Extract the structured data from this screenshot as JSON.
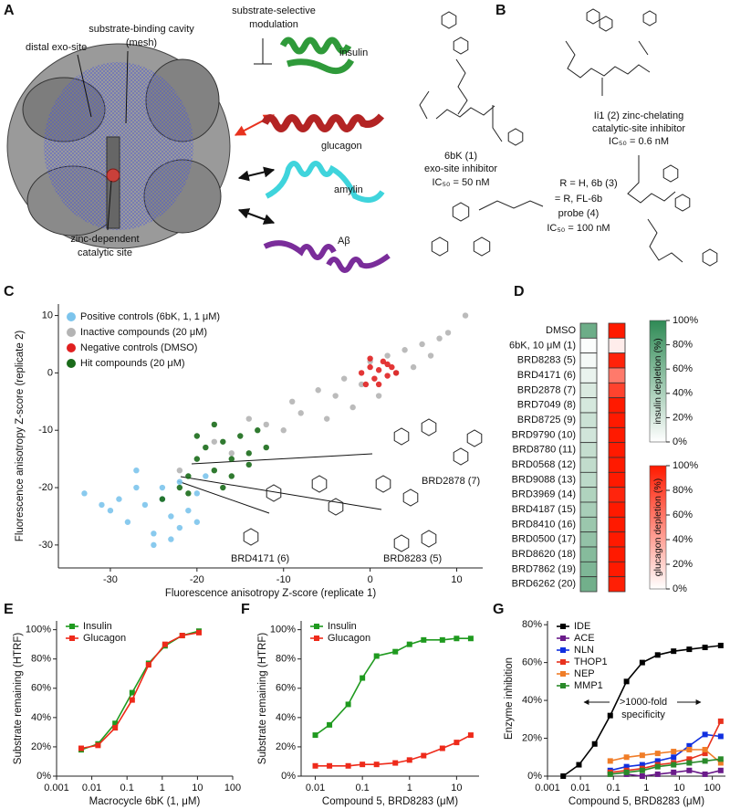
{
  "panel_a": {
    "label": "A",
    "exo_site": "distal exo-site",
    "cavity": [
      "substrate-binding cavity",
      "(mesh)"
    ],
    "catalytic_site": [
      "zinc-dependent",
      "catalytic site"
    ],
    "modulation": [
      "substrate-selective",
      "modulation"
    ],
    "substrates": [
      "insulin",
      "glucagon",
      "amylin",
      "Aβ"
    ]
  },
  "panel_b": {
    "label": "B",
    "compounds": [
      {
        "lines": [
          "6bK (1)",
          "exo-site inhibitor",
          "IC₅₀ = 50 nM"
        ]
      },
      {
        "lines": [
          "Ii1 (2) zinc-chelating",
          "catalytic-site inhibitor",
          "IC₅₀ = 0.6 nM"
        ]
      },
      {
        "lines": [
          "R = H, 6b (3)",
          "= R, FL-6b",
          "probe (4)",
          "IC₅₀ = 100 nM"
        ]
      }
    ]
  },
  "chart_data": [
    {
      "type": "scatter",
      "label": "C",
      "x_label": "Fluorescence anisotropy Z-score (replicate 1)",
      "y_label": "Fluorescence anisotropy Z-score (replicate 2)",
      "xlim": [
        -36,
        13
      ],
      "ylim": [
        -34,
        12
      ],
      "xticks": [
        -30,
        -20,
        -10,
        0,
        10
      ],
      "yticks": [
        -30,
        -20,
        -10,
        0,
        10
      ],
      "legend": "upper left",
      "series": [
        {
          "name": "Positive controls (6bK, 1, 1 μM)",
          "color": "#7cc4ec",
          "x": [
            -33,
            -30,
            -28,
            -27,
            -26,
            -25,
            -24,
            -23,
            -22,
            -21,
            -20,
            -19,
            -29,
            -25,
            -22,
            -27,
            -24,
            -20,
            -31,
            -23
          ],
          "values": [
            -21,
            -24,
            -26,
            -20,
            -23,
            -28,
            -22,
            -25,
            -19,
            -24,
            -21,
            -18,
            -22,
            -30,
            -27,
            -17,
            -20,
            -26,
            -23,
            -29
          ]
        },
        {
          "name": "Inactive compounds (20 μM)",
          "color": "#b4b4b4",
          "x": [
            -22,
            -18,
            -16,
            -14,
            -12,
            -10,
            -9,
            -8,
            -6,
            -5,
            -4,
            -3,
            -2,
            -1,
            0,
            1,
            2,
            3,
            4,
            5,
            6,
            7,
            8,
            9,
            11
          ],
          "values": [
            -17,
            -12,
            -14,
            -8,
            -9,
            -10,
            -5,
            -7,
            -3,
            -8,
            -4,
            -1,
            -6,
            -2,
            2,
            -4,
            3,
            0,
            4,
            1,
            5,
            3,
            6,
            7,
            10
          ]
        },
        {
          "name": "Negative controls (DMSO)",
          "color": "#e02020",
          "x": [
            -1,
            0,
            0.5,
            1,
            1.5,
            2,
            2.5,
            3,
            -0.5,
            1,
            2,
            0
          ],
          "values": [
            0,
            1,
            -1,
            0.5,
            2,
            -0.5,
            1,
            0,
            -2,
            -2,
            1.5,
            2.5
          ]
        },
        {
          "name": "Hit compounds (20 μM)",
          "color": "#1a6b1a",
          "x": [
            -24,
            -22,
            -21,
            -20,
            -19,
            -18,
            -17,
            -16,
            -15,
            -14,
            -13,
            -12,
            -18,
            -16,
            -14,
            -20,
            -21,
            -17
          ],
          "values": [
            -22,
            -20,
            -18,
            -15,
            -13,
            -17,
            -12,
            -15,
            -11,
            -14,
            -10,
            -13,
            -9,
            -18,
            -16,
            -11,
            -21,
            -20
          ]
        }
      ],
      "annotations": [
        "BRD2878 (7)",
        "BRD4171 (6)",
        "BRD8283 (5)"
      ]
    },
    {
      "type": "heatmap",
      "label": "D",
      "categories": [
        "DMSO",
        "6bK, 10 μM (1)",
        "BRD8283 (5)",
        "BRD4171 (6)",
        "BRD2878 (7)",
        "BRD7049 (8)",
        "BRD8725 (9)",
        "BRD9790 (10)",
        "BRD8780 (11)",
        "BRD0568 (12)",
        "BRD9088 (13)",
        "BRD3969 (14)",
        "BRD4187 (15)",
        "BRD8410 (16)",
        "BRD0500 (17)",
        "BRD8620 (18)",
        "BRD7862 (19)",
        "BRD6262 (20)"
      ],
      "series": [
        {
          "name": "insulin depletion (%)",
          "color": "#2f8a55",
          "values": [
            70,
            2,
            5,
            10,
            18,
            20,
            25,
            22,
            28,
            30,
            32,
            38,
            42,
            48,
            52,
            58,
            62,
            68
          ]
        },
        {
          "name": "glucagon depletion (%)",
          "color": "#ff1a00",
          "values": [
            100,
            8,
            96,
            58,
            82,
            100,
            100,
            100,
            100,
            100,
            100,
            95,
            100,
            100,
            100,
            100,
            100,
            98
          ]
        }
      ],
      "clim": [
        0,
        100
      ],
      "cticks": [
        {
          "value": 0,
          "label": "0%"
        },
        {
          "value": 20,
          "label": "20%"
        },
        {
          "value": 40,
          "label": "40%"
        },
        {
          "value": 60,
          "label": "60%"
        },
        {
          "value": 80,
          "label": "80%"
        },
        {
          "value": 100,
          "label": "100%"
        }
      ]
    },
    {
      "type": "line",
      "label": "E",
      "x_label": "Macrocycle 6bK (1, μM)",
      "y_label": "Substrate remaining (HTRF)",
      "xscale": "log",
      "xlim": [
        0.001,
        100
      ],
      "xticks": [
        0.001,
        0.01,
        0.1,
        1,
        10,
        100
      ],
      "ylim": [
        0,
        106
      ],
      "yticks": [
        {
          "value": 0,
          "label": "0%"
        },
        {
          "value": 20,
          "label": "20%"
        },
        {
          "value": 40,
          "label": "40%"
        },
        {
          "value": 60,
          "label": "60%"
        },
        {
          "value": 80,
          "label": "80%"
        },
        {
          "value": 100,
          "label": "100%"
        }
      ],
      "legend": "upper left",
      "x": [
        0.005,
        0.015,
        0.046,
        0.14,
        0.41,
        1.2,
        3.7,
        11
      ],
      "series": [
        {
          "name": "Insulin",
          "color": "#1f9a1f",
          "values": [
            18,
            22,
            36,
            57,
            77,
            89,
            96,
            99
          ]
        },
        {
          "name": "Glucagon",
          "color": "#ee2a1a",
          "values": [
            19,
            21,
            33,
            52,
            76,
            90,
            96,
            98
          ]
        }
      ]
    },
    {
      "type": "line",
      "label": "F",
      "x_label": "Compound 5, BRD8283 (μM)",
      "y_label": "Substrate remaining (HTRF)",
      "xscale": "log",
      "xlim": [
        0.005,
        30
      ],
      "xticks": [
        0.01,
        0.1,
        1,
        10
      ],
      "ylim": [
        0,
        106
      ],
      "yticks": [
        {
          "value": 0,
          "label": "0%"
        },
        {
          "value": 20,
          "label": "20%"
        },
        {
          "value": 40,
          "label": "40%"
        },
        {
          "value": 60,
          "label": "60%"
        },
        {
          "value": 80,
          "label": "80%"
        },
        {
          "value": 100,
          "label": "100%"
        }
      ],
      "legend": "upper left",
      "x": [
        0.01,
        0.02,
        0.05,
        0.1,
        0.2,
        0.5,
        1,
        2,
        5,
        10,
        20
      ],
      "series": [
        {
          "name": "Insulin",
          "color": "#1f9a1f",
          "values": [
            28,
            35,
            49,
            67,
            82,
            85,
            90,
            93,
            93,
            94,
            94
          ]
        },
        {
          "name": "Glucagon",
          "color": "#ee2a1a",
          "values": [
            7,
            7,
            7,
            8,
            8,
            9,
            11,
            14,
            19,
            23,
            28
          ]
        }
      ]
    },
    {
      "type": "line",
      "label": "G",
      "x_label": "Compound 5, BRD8283 (μM)",
      "y_label": "Enzyme inhibition",
      "xscale": "log",
      "xlim": [
        0.001,
        250
      ],
      "xticks": [
        0.001,
        0.01,
        0.1,
        1,
        10,
        100
      ],
      "ylim": [
        0,
        82
      ],
      "yticks": [
        {
          "value": 0,
          "label": "0%"
        },
        {
          "value": 20,
          "label": "20%"
        },
        {
          "value": 40,
          "label": "40%"
        },
        {
          "value": 60,
          "label": "60%"
        },
        {
          "value": 80,
          "label": "80%"
        }
      ],
      "legend": "upper left",
      "x": [
        0.003,
        0.009,
        0.027,
        0.08,
        0.25,
        0.75,
        2.2,
        6.7,
        20,
        60,
        180
      ],
      "series": [
        {
          "name": "IDE",
          "color": "#000000",
          "values": [
            0,
            6,
            17,
            32,
            50,
            60,
            64,
            66,
            67,
            68,
            69
          ]
        },
        {
          "name": "ACE",
          "color": "#6a1b8a",
          "values": [
            null,
            null,
            null,
            null,
            1,
            0,
            1,
            2,
            3,
            1,
            3
          ]
        },
        {
          "name": "NLN",
          "color": "#1030e0",
          "values": [
            null,
            null,
            null,
            3,
            5,
            6,
            8,
            10,
            16,
            22,
            21
          ]
        },
        {
          "name": "THOP1",
          "color": "#e8321e",
          "values": [
            null,
            null,
            null,
            2,
            3,
            4,
            6,
            7,
            9,
            12,
            29
          ]
        },
        {
          "name": "NEP",
          "color": "#f07d28",
          "values": [
            null,
            null,
            null,
            8,
            10,
            11,
            12,
            13,
            14,
            14,
            7
          ]
        },
        {
          "name": "MMP1",
          "color": "#2a8a2a",
          "values": [
            null,
            null,
            null,
            1,
            2,
            3,
            5,
            6,
            7,
            8,
            9
          ]
        }
      ],
      "annotations": [
        ">1000-fold",
        "specificity"
      ]
    }
  ]
}
